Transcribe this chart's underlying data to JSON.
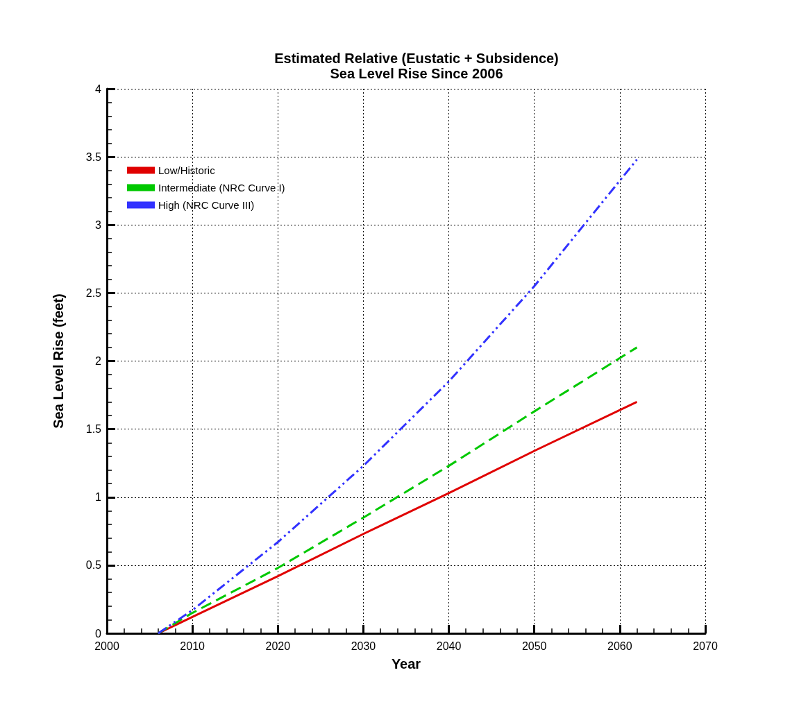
{
  "chart_data": {
    "type": "line",
    "title": "Estimated Relative (Eustatic + Subsidence)\nSea Level Rise Since 2006",
    "xlabel": "Year",
    "ylabel": "Sea Level Rise (feet)",
    "x": [
      2006,
      2010,
      2020,
      2030,
      2040,
      2050,
      2062
    ],
    "series": [
      {
        "name": "Low/Historic",
        "color": "#e00000",
        "line_style": "solid",
        "values": [
          0,
          0.12,
          0.42,
          0.73,
          1.03,
          1.34,
          1.7
        ]
      },
      {
        "name": "Intermediate (NRC Curve I)",
        "color": "#00c800",
        "line_style": "dashed",
        "values": [
          0,
          0.15,
          0.48,
          0.85,
          1.23,
          1.63,
          2.1
        ]
      },
      {
        "name": "High (NRC Curve III)",
        "color": "#3232ff",
        "line_style": "dashdotdot",
        "values": [
          0,
          0.17,
          0.67,
          1.23,
          1.85,
          2.55,
          3.48
        ]
      }
    ],
    "xlim": [
      2000,
      2070
    ],
    "xticks": [
      2000,
      2010,
      2020,
      2030,
      2040,
      2050,
      2060,
      2070
    ],
    "ylim": [
      0,
      4
    ],
    "yticks": [
      0,
      0.5,
      1,
      1.5,
      2,
      2.5,
      3,
      3.5,
      4
    ],
    "grid": true,
    "legend": "top left",
    "marker": "none"
  }
}
